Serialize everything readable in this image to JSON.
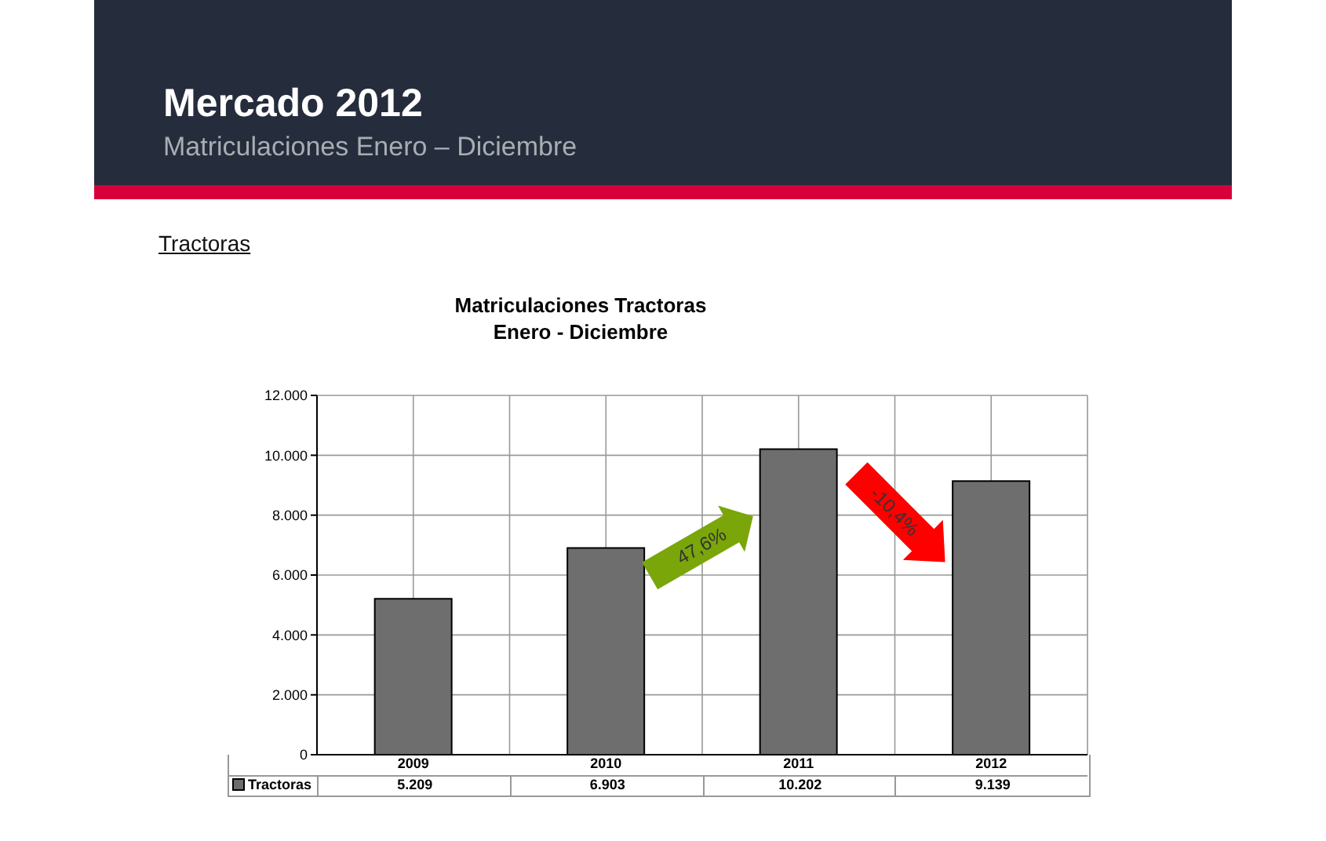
{
  "chart_data": {
    "type": "bar",
    "title": "Mercado 2012",
    "subtitle": "Matriculaciones Enero – Diciembre",
    "annotations": [
      "Tractoras",
      "Matriculaciones Tractoras",
      "Enero - Diciembre",
      "47,6%",
      "-10,4%"
    ],
    "categories": [
      "2009",
      "2010",
      "2011",
      "2012"
    ],
    "series": [
      {
        "name": "Tractoras",
        "color": "#6e6e6e",
        "values": [
          5209,
          6903,
          10202,
          9139
        ]
      }
    ],
    "value_labels": [
      "5.209",
      "6.903",
      "10.202",
      "9.139"
    ],
    "ylim": [
      0,
      12000
    ],
    "yticks": [
      {
        "value": 0,
        "label": "0"
      },
      {
        "value": 2000,
        "label": "2.000"
      },
      {
        "value": 4000,
        "label": "4.000"
      },
      {
        "value": 6000,
        "label": "6.000"
      },
      {
        "value": 8000,
        "label": "8.000"
      },
      {
        "value": 10000,
        "label": "10.000"
      },
      {
        "value": 12000,
        "label": "12.000"
      }
    ],
    "grid": true,
    "legend": "bottom"
  }
}
